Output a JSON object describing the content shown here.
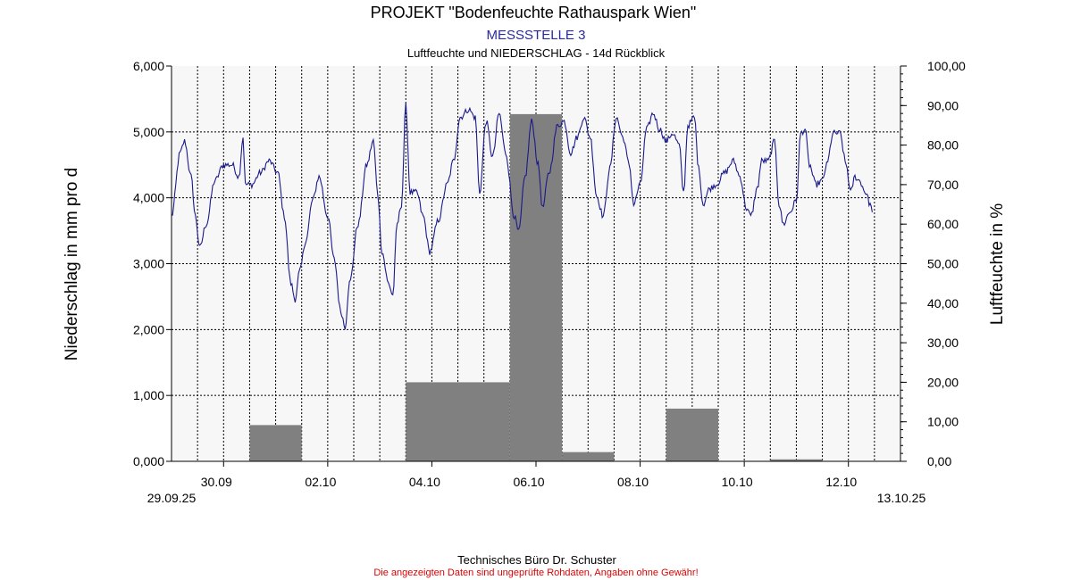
{
  "header": {
    "title": "PROJEKT \"Bodenfeuchte Rathauspark Wien\"",
    "subtitle": "MESSSTELLE 3",
    "caption": "Luftfeuchte und NIEDERSCHLAG - 14d Rückblick"
  },
  "footer": {
    "company": "Technisches Büro Dr. Schuster",
    "disclaimer": "Die angezeigten Daten sind ungeprüfte Rohdaten, Angaben ohne Gewähr!"
  },
  "colors": {
    "subtitle": "#2a2a9c",
    "disclaimer": "#e00000",
    "bars": "#808080",
    "line": "#1a1a8c",
    "plot_bg": "#f7f7f7",
    "grid": "#000000"
  },
  "chart_data": {
    "type": "bar+line",
    "x_range": [
      "2025-09-29T00:00",
      "2025-10-13T00:00"
    ],
    "xlabel": "",
    "x_tick_labels": [
      "30.09",
      "02.10",
      "04.10",
      "06.10",
      "08.10",
      "10.10",
      "12.10"
    ],
    "x_tick_dates": [
      "2025-09-30",
      "2025-10-02",
      "2025-10-04",
      "2025-10-06",
      "2025-10-08",
      "2025-10-10",
      "2025-10-12"
    ],
    "x_start_label": "29.09.25",
    "x_end_label": "13.10.25",
    "grid": true,
    "y_left": {
      "label": "Niederschlag in mm pro d",
      "ylim": [
        0,
        6
      ],
      "tick_labels": [
        "0,000",
        "1,000",
        "2,000",
        "3,000",
        "4,000",
        "5,000",
        "6,000"
      ]
    },
    "y_right": {
      "label": "Luftfeuchte in %",
      "ylim": [
        0,
        100
      ],
      "tick_labels": [
        "0,00",
        "10,00",
        "20,00",
        "30,00",
        "40,00",
        "50,00",
        "60,00",
        "70,00",
        "80,00",
        "90,00",
        "100,00"
      ]
    },
    "bars": {
      "axis": "left",
      "unit": "mm pro d",
      "data": [
        {
          "start": "2025-09-30T12:00",
          "end": "2025-10-01T12:00",
          "value": 0.55
        },
        {
          "start": "2025-10-03T12:00",
          "end": "2025-10-05T12:00",
          "value": 1.2
        },
        {
          "start": "2025-10-05T12:00",
          "end": "2025-10-06T12:00",
          "value": 5.27
        },
        {
          "start": "2025-10-06T12:00",
          "end": "2025-10-07T12:00",
          "value": 0.14
        },
        {
          "start": "2025-10-08T12:00",
          "end": "2025-10-09T12:00",
          "value": 0.8
        },
        {
          "start": "2025-10-10T12:00",
          "end": "2025-10-11T12:00",
          "value": 0.03
        }
      ]
    },
    "line": {
      "axis": "right",
      "unit": "%",
      "points": [
        [
          "2025-09-29T00:00",
          62
        ],
        [
          "2025-09-29T04:00",
          78
        ],
        [
          "2025-09-29T06:00",
          81
        ],
        [
          "2025-09-29T09:00",
          72
        ],
        [
          "2025-09-29T11:00",
          62
        ],
        [
          "2025-09-29T13:00",
          54
        ],
        [
          "2025-09-29T16:00",
          60
        ],
        [
          "2025-09-29T20:00",
          71
        ],
        [
          "2025-09-30T00:00",
          75
        ],
        [
          "2025-09-30T04:00",
          75
        ],
        [
          "2025-09-30T07:00",
          72
        ],
        [
          "2025-09-30T09:00",
          82
        ],
        [
          "2025-09-30T10:00",
          70
        ],
        [
          "2025-09-30T13:00",
          70
        ],
        [
          "2025-09-30T17:00",
          73
        ],
        [
          "2025-09-30T21:00",
          76
        ],
        [
          "2025-10-01T01:00",
          73
        ],
        [
          "2025-10-01T04:00",
          62
        ],
        [
          "2025-10-01T07:00",
          45
        ],
        [
          "2025-10-01T09:00",
          41
        ],
        [
          "2025-10-01T11:00",
          48
        ],
        [
          "2025-10-01T14:00",
          56
        ],
        [
          "2025-10-01T17:00",
          66
        ],
        [
          "2025-10-01T20:00",
          72
        ],
        [
          "2025-10-02T00:00",
          62
        ],
        [
          "2025-10-02T03:00",
          51
        ],
        [
          "2025-10-02T06:00",
          38
        ],
        [
          "2025-10-02T08:00",
          34
        ],
        [
          "2025-10-02T10:00",
          45
        ],
        [
          "2025-10-02T14:00",
          60
        ],
        [
          "2025-10-02T18:00",
          75
        ],
        [
          "2025-10-02T21:00",
          81
        ],
        [
          "2025-10-02T23:00",
          68
        ],
        [
          "2025-10-03T01:00",
          53
        ],
        [
          "2025-10-03T04:00",
          45
        ],
        [
          "2025-10-03T06:00",
          42
        ],
        [
          "2025-10-03T08:00",
          60
        ],
        [
          "2025-10-03T10:00",
          65
        ],
        [
          "2025-10-03T12:00",
          90
        ],
        [
          "2025-10-03T14:00",
          68
        ],
        [
          "2025-10-03T17:00",
          68
        ],
        [
          "2025-10-03T20:00",
          62
        ],
        [
          "2025-10-03T23:00",
          53
        ],
        [
          "2025-10-04T03:00",
          61
        ],
        [
          "2025-10-04T07:00",
          70
        ],
        [
          "2025-10-04T10:00",
          76
        ],
        [
          "2025-10-04T13:00",
          87
        ],
        [
          "2025-10-04T17:00",
          89
        ],
        [
          "2025-10-04T20:00",
          87
        ],
        [
          "2025-10-04T22:00",
          68
        ],
        [
          "2025-10-05T01:00",
          86
        ],
        [
          "2025-10-05T04:00",
          77
        ],
        [
          "2025-10-05T07:00",
          88
        ],
        [
          "2025-10-05T10:00",
          78
        ],
        [
          "2025-10-05T14:00",
          62
        ],
        [
          "2025-10-05T16:00",
          58
        ],
        [
          "2025-10-05T19:00",
          72
        ],
        [
          "2025-10-05T22:00",
          86
        ],
        [
          "2025-10-06T01:00",
          75
        ],
        [
          "2025-10-06T03:00",
          64
        ],
        [
          "2025-10-06T06:00",
          73
        ],
        [
          "2025-10-06T10:00",
          85
        ],
        [
          "2025-10-06T13:00",
          86
        ],
        [
          "2025-10-06T16:00",
          78
        ],
        [
          "2025-10-06T19:00",
          82
        ],
        [
          "2025-10-06T22:00",
          87
        ],
        [
          "2025-10-07T01:00",
          82
        ],
        [
          "2025-10-07T04:00",
          67
        ],
        [
          "2025-10-07T07:00",
          62
        ],
        [
          "2025-10-07T10:00",
          74
        ],
        [
          "2025-10-07T13:00",
          87
        ],
        [
          "2025-10-07T16:00",
          82
        ],
        [
          "2025-10-07T19:00",
          75
        ],
        [
          "2025-10-07T21:00",
          65
        ],
        [
          "2025-10-08T00:00",
          70
        ],
        [
          "2025-10-08T03:00",
          84
        ],
        [
          "2025-10-08T06:00",
          88
        ],
        [
          "2025-10-08T09:00",
          84
        ],
        [
          "2025-10-08T12:00",
          81
        ],
        [
          "2025-10-08T15:00",
          83
        ],
        [
          "2025-10-08T18:00",
          80
        ],
        [
          "2025-10-08T20:00",
          68
        ],
        [
          "2025-10-08T22:00",
          85
        ],
        [
          "2025-10-09T01:00",
          87
        ],
        [
          "2025-10-09T03:00",
          74
        ],
        [
          "2025-10-09T05:00",
          65
        ],
        [
          "2025-10-09T08:00",
          69
        ],
        [
          "2025-10-09T11:00",
          70
        ],
        [
          "2025-10-09T15:00",
          73
        ],
        [
          "2025-10-09T19:00",
          76
        ],
        [
          "2025-10-09T22:00",
          72
        ],
        [
          "2025-10-10T01:00",
          64
        ],
        [
          "2025-10-10T03:00",
          62
        ],
        [
          "2025-10-10T06:00",
          69
        ],
        [
          "2025-10-10T08:00",
          76
        ],
        [
          "2025-10-10T11:00",
          76
        ],
        [
          "2025-10-10T14:00",
          81
        ],
        [
          "2025-10-10T16:00",
          65
        ],
        [
          "2025-10-10T18:00",
          60
        ],
        [
          "2025-10-10T21:00",
          63
        ],
        [
          "2025-10-11T00:00",
          66
        ],
        [
          "2025-10-11T02:00",
          83
        ],
        [
          "2025-10-11T04:00",
          84
        ],
        [
          "2025-10-11T06:00",
          75
        ],
        [
          "2025-10-11T09:00",
          70
        ],
        [
          "2025-10-11T12:00",
          71
        ],
        [
          "2025-10-11T14:00",
          75
        ],
        [
          "2025-10-11T17:00",
          83
        ],
        [
          "2025-10-11T20:00",
          83
        ],
        [
          "2025-10-11T23:00",
          75
        ],
        [
          "2025-10-12T01:00",
          68
        ],
        [
          "2025-10-12T03:00",
          72
        ],
        [
          "2025-10-12T05:00",
          71
        ],
        [
          "2025-10-12T08:00",
          68
        ],
        [
          "2025-10-12T10:00",
          65
        ],
        [
          "2025-10-12T11:00",
          63
        ]
      ]
    }
  }
}
